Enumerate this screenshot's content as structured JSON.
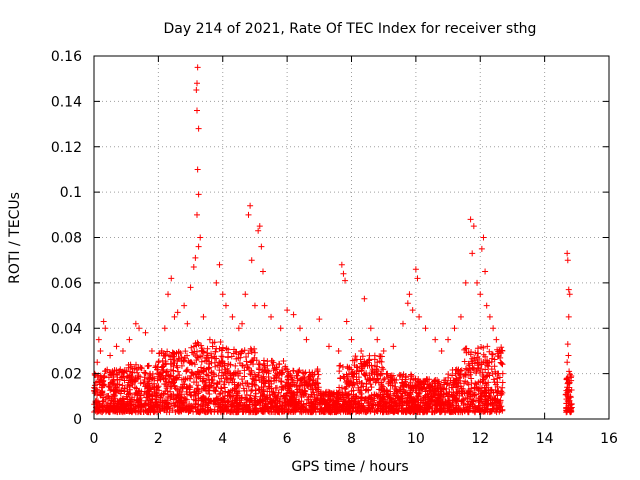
{
  "chart_data": {
    "type": "scatter",
    "title": "Day 214 of 2021, Rate Of TEC Index for receiver sthg",
    "xlabel": "GPS time / hours",
    "ylabel": "ROTI / TECUs",
    "xlim": [
      0,
      16
    ],
    "ylim": [
      0,
      0.16
    ],
    "xticks": [
      0,
      2,
      4,
      6,
      8,
      10,
      12,
      14,
      16
    ],
    "yticks": [
      0,
      0.02,
      0.04,
      0.06,
      0.08,
      0.1,
      0.12,
      0.14,
      0.16
    ],
    "ytick_labels": [
      "0",
      "0.02",
      "0.04",
      "0.06",
      "0.08",
      "0.1",
      "0.12",
      "0.14",
      "0.16"
    ],
    "grid": true,
    "marker": "+",
    "color": "#ff0000",
    "series": [
      {
        "name": "ROTI",
        "points": [
          [
            0.05,
            0.012
          ],
          [
            0.1,
            0.025
          ],
          [
            0.15,
            0.035
          ],
          [
            0.2,
            0.03
          ],
          [
            0.3,
            0.043
          ],
          [
            0.35,
            0.04
          ],
          [
            0.5,
            0.028
          ],
          [
            0.7,
            0.032
          ],
          [
            0.9,
            0.03
          ],
          [
            1.1,
            0.035
          ],
          [
            1.3,
            0.042
          ],
          [
            1.4,
            0.04
          ],
          [
            1.6,
            0.038
          ],
          [
            1.8,
            0.03
          ],
          [
            2.0,
            0.025
          ],
          [
            2.2,
            0.04
          ],
          [
            2.3,
            0.055
          ],
          [
            2.4,
            0.062
          ],
          [
            2.5,
            0.045
          ],
          [
            2.6,
            0.047
          ],
          [
            2.8,
            0.05
          ],
          [
            2.9,
            0.042
          ],
          [
            3.0,
            0.058
          ],
          [
            3.1,
            0.067
          ],
          [
            3.15,
            0.071
          ],
          [
            3.2,
            0.09
          ],
          [
            3.22,
            0.11
          ],
          [
            3.25,
            0.128
          ],
          [
            3.2,
            0.136
          ],
          [
            3.18,
            0.145
          ],
          [
            3.2,
            0.148
          ],
          [
            3.22,
            0.155
          ],
          [
            3.25,
            0.099
          ],
          [
            3.3,
            0.08
          ],
          [
            3.25,
            0.076
          ],
          [
            3.4,
            0.045
          ],
          [
            3.6,
            0.035
          ],
          [
            3.8,
            0.06
          ],
          [
            3.9,
            0.068
          ],
          [
            4.0,
            0.055
          ],
          [
            4.1,
            0.05
          ],
          [
            4.3,
            0.045
          ],
          [
            4.5,
            0.04
          ],
          [
            4.6,
            0.042
          ],
          [
            4.7,
            0.055
          ],
          [
            4.8,
            0.09
          ],
          [
            4.85,
            0.094
          ],
          [
            4.9,
            0.07
          ],
          [
            5.0,
            0.05
          ],
          [
            5.1,
            0.083
          ],
          [
            5.15,
            0.085
          ],
          [
            5.2,
            0.076
          ],
          [
            5.25,
            0.065
          ],
          [
            5.3,
            0.05
          ],
          [
            5.5,
            0.045
          ],
          [
            5.8,
            0.04
          ],
          [
            6.0,
            0.048
          ],
          [
            6.2,
            0.046
          ],
          [
            6.4,
            0.04
          ],
          [
            6.6,
            0.035
          ],
          [
            7.0,
            0.044
          ],
          [
            7.3,
            0.032
          ],
          [
            7.6,
            0.03
          ],
          [
            7.7,
            0.068
          ],
          [
            7.75,
            0.064
          ],
          [
            7.8,
            0.061
          ],
          [
            7.85,
            0.043
          ],
          [
            8.0,
            0.035
          ],
          [
            8.3,
            0.03
          ],
          [
            8.4,
            0.053
          ],
          [
            8.6,
            0.04
          ],
          [
            8.8,
            0.035
          ],
          [
            9.0,
            0.03
          ],
          [
            9.3,
            0.032
          ],
          [
            9.6,
            0.042
          ],
          [
            9.75,
            0.051
          ],
          [
            9.8,
            0.055
          ],
          [
            9.9,
            0.048
          ],
          [
            10.0,
            0.066
          ],
          [
            10.05,
            0.062
          ],
          [
            10.1,
            0.045
          ],
          [
            10.3,
            0.04
          ],
          [
            10.6,
            0.035
          ],
          [
            10.8,
            0.03
          ],
          [
            11.0,
            0.035
          ],
          [
            11.2,
            0.04
          ],
          [
            11.4,
            0.045
          ],
          [
            11.55,
            0.06
          ],
          [
            11.7,
            0.088
          ],
          [
            11.75,
            0.073
          ],
          [
            11.8,
            0.085
          ],
          [
            11.9,
            0.06
          ],
          [
            12.0,
            0.055
          ],
          [
            12.05,
            0.075
          ],
          [
            12.1,
            0.08
          ],
          [
            12.15,
            0.065
          ],
          [
            12.2,
            0.05
          ],
          [
            12.3,
            0.045
          ],
          [
            12.4,
            0.04
          ],
          [
            12.5,
            0.035
          ],
          [
            12.6,
            0.03
          ],
          [
            12.7,
            0.02
          ],
          [
            14.7,
            0.073
          ],
          [
            14.72,
            0.07
          ],
          [
            14.75,
            0.057
          ],
          [
            14.78,
            0.055
          ],
          [
            14.75,
            0.045
          ],
          [
            14.72,
            0.033
          ],
          [
            14.74,
            0.028
          ],
          [
            14.7,
            0.025
          ],
          [
            14.76,
            0.021
          ],
          [
            14.72,
            0.018
          ],
          [
            14.78,
            0.016
          ],
          [
            14.7,
            0.014
          ],
          [
            14.74,
            0.012
          ],
          [
            14.8,
            0.01
          ],
          [
            14.72,
            0.008
          ],
          [
            14.76,
            0.006
          ],
          [
            14.7,
            0.005
          ]
        ]
      }
    ],
    "dense_band": [
      {
        "x0": 0.0,
        "x1": 0.3,
        "hi": 0.02
      },
      {
        "x0": 0.3,
        "x1": 1.0,
        "hi": 0.022
      },
      {
        "x0": 1.0,
        "x1": 2.0,
        "hi": 0.024
      },
      {
        "x0": 2.0,
        "x1": 3.0,
        "hi": 0.03
      },
      {
        "x0": 3.0,
        "x1": 4.0,
        "hi": 0.034
      },
      {
        "x0": 4.0,
        "x1": 5.0,
        "hi": 0.032
      },
      {
        "x0": 5.0,
        "x1": 6.0,
        "hi": 0.026
      },
      {
        "x0": 6.0,
        "x1": 7.0,
        "hi": 0.022
      },
      {
        "x0": 7.0,
        "x1": 7.6,
        "hi": 0.012
      },
      {
        "x0": 7.6,
        "x1": 8.0,
        "hi": 0.024
      },
      {
        "x0": 8.0,
        "x1": 9.0,
        "hi": 0.028
      },
      {
        "x0": 9.0,
        "x1": 10.0,
        "hi": 0.02
      },
      {
        "x0": 10.0,
        "x1": 11.0,
        "hi": 0.018
      },
      {
        "x0": 11.0,
        "x1": 11.5,
        "hi": 0.022
      },
      {
        "x0": 11.5,
        "x1": 12.7,
        "hi": 0.032
      },
      {
        "x0": 14.65,
        "x1": 14.85,
        "hi": 0.02
      }
    ]
  }
}
